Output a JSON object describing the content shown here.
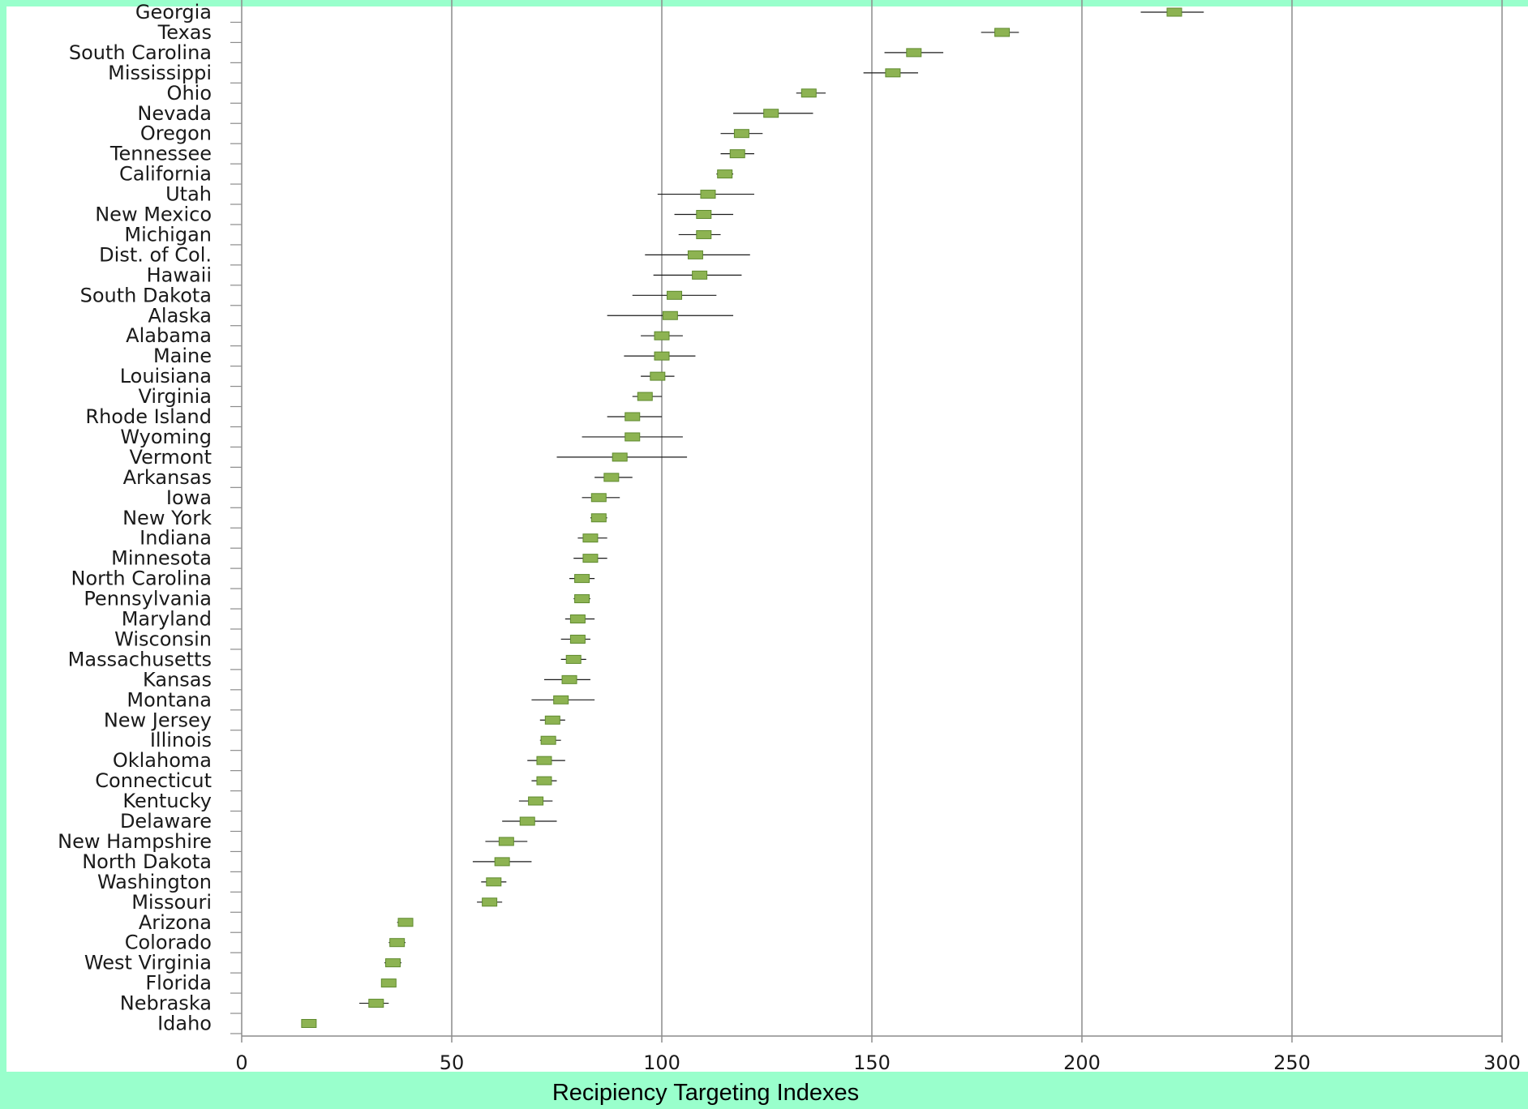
{
  "chart_data": {
    "type": "scatter",
    "xlabel": "Recipiency Targeting Indexes",
    "xlim": [
      0,
      300
    ],
    "xticks": [
      0,
      50,
      100,
      150,
      200,
      250,
      300
    ],
    "grid": "vertical",
    "marker_color": "#8db352",
    "categories": [
      "Georgia",
      "Texas",
      "South Carolina",
      "Mississippi",
      "Ohio",
      "Nevada",
      "Oregon",
      "Tennessee",
      "California",
      "Utah",
      "New Mexico",
      "Michigan",
      "Dist. of Col.",
      "Hawaii",
      "South Dakota",
      "Alaska",
      "Alabama",
      "Maine",
      "Louisiana",
      "Virginia",
      "Rhode Island",
      "Wyoming",
      "Vermont",
      "Arkansas",
      "Iowa",
      "New York",
      "Indiana",
      "Minnesota",
      "North Carolina",
      "Pennsylvania",
      "Maryland",
      "Wisconsin",
      "Massachusetts",
      "Kansas",
      "Montana",
      "New Jersey",
      "Illinois",
      "Oklahoma",
      "Connecticut",
      "Kentucky",
      "Delaware",
      "New Hampshire",
      "North Dakota",
      "Washington",
      "Missouri",
      "Arizona",
      "Colorado",
      "West Virginia",
      "Florida",
      "Nebraska",
      "Idaho"
    ],
    "values": [
      222,
      181,
      160,
      155,
      135,
      126,
      119,
      118,
      115,
      111,
      110,
      110,
      108,
      109,
      103,
      102,
      100,
      100,
      99,
      96,
      93,
      93,
      90,
      88,
      85,
      85,
      83,
      83,
      81,
      81,
      80,
      80,
      79,
      78,
      76,
      74,
      73,
      72,
      72,
      70,
      68,
      63,
      62,
      60,
      59,
      39,
      37,
      36,
      35,
      32,
      16
    ],
    "lower": [
      214,
      176,
      153,
      148,
      132,
      117,
      114,
      114,
      113,
      99,
      103,
      104,
      96,
      98,
      93,
      87,
      95,
      91,
      95,
      93,
      87,
      81,
      75,
      84,
      81,
      83,
      80,
      79,
      78,
      79,
      77,
      76,
      76,
      72,
      69,
      71,
      71,
      68,
      69,
      66,
      62,
      58,
      55,
      57,
      56,
      37,
      35,
      34,
      34,
      28,
      15
    ],
    "upper": [
      229,
      185,
      167,
      161,
      139,
      136,
      124,
      122,
      117,
      122,
      117,
      114,
      121,
      119,
      113,
      117,
      105,
      108,
      103,
      100,
      100,
      105,
      106,
      93,
      90,
      87,
      87,
      87,
      84,
      83,
      84,
      83,
      82,
      83,
      84,
      77,
      76,
      77,
      75,
      74,
      75,
      68,
      69,
      63,
      62,
      40,
      39,
      38,
      36,
      35,
      17
    ]
  }
}
